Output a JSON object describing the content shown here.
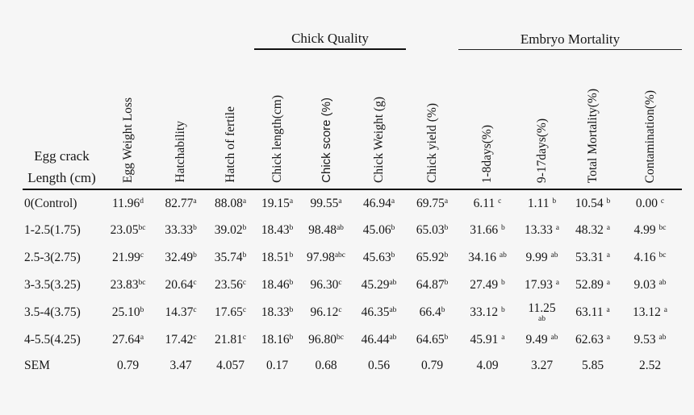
{
  "table": {
    "group_headers": [
      {
        "label": "Chick Quality"
      },
      {
        "label": "Embryo Mortality"
      }
    ],
    "row_header_line1": "Egg crack",
    "row_header_line2": "Length (cm)",
    "columns": [
      {
        "label": "Egg Weight Loss"
      },
      {
        "label": "Hatchability"
      },
      {
        "label": "Hatch of fertile"
      },
      {
        "label": "Chick length(cm)"
      },
      {
        "label": "Chick score (%)",
        "font": "sans"
      },
      {
        "label": "Chick Weight (g)"
      },
      {
        "label": "Chick yield (%)"
      },
      {
        "label": "1-8days(%)"
      },
      {
        "label": "9-17days(%)"
      },
      {
        "label": "Total Mortality(%)"
      },
      {
        "label": "Contamination(%)"
      }
    ],
    "rows": [
      {
        "label": "0(Control)",
        "cells": [
          "11.96^d",
          "82.77^a",
          "88.08^a",
          "19.15^a",
          "99.55^a",
          "46.94^a",
          "69.75^a",
          "6.11 ^c",
          "1.11 ^b",
          "10.54 ^b",
          "0.00 ^c"
        ]
      },
      {
        "label": "1-2.5(1.75)",
        "cells": [
          "23.05^bc",
          "33.33^b",
          "39.02^b",
          "18.43^b",
          "98.48^ab",
          "45.06^b",
          "65.03^b",
          "31.66 ^b",
          "13.33 ^a",
          "48.32 ^a",
          "4.99 ^bc"
        ]
      },
      {
        "label": "2.5-3(2.75)",
        "cells": [
          "21.99^c",
          "32.49^b",
          "35.74^b",
          "18.51^b",
          "97.98^abc",
          "45.63^b",
          "65.92^b",
          "34.16 ^ab",
          "9.99 ^ab",
          "53.31 ^a",
          "4.16 ^bc"
        ]
      },
      {
        "label": "3-3.5(3.25)",
        "cells": [
          "23.83^bc",
          "20.64^c",
          "23.56^c",
          "18.46^b",
          "96.30^c",
          "45.29^ab",
          "64.87^b",
          "27.49 ^b",
          "17.93 ^a",
          "52.89 ^a",
          "9.03 ^ab"
        ]
      },
      {
        "label": "3.5-4(3.75)",
        "cells": [
          "25.10^b",
          "14.37^c",
          "17.65^c",
          "18.33^b",
          "96.12^c",
          "46.35^ab",
          "66.4^b",
          "33.12 ^b",
          "11.25~ab",
          "63.11 ^a",
          "13.12 ^a"
        ]
      },
      {
        "label": "4-5.5(4.25)",
        "cells": [
          "27.64^a",
          "17.42^c",
          "21.81^c",
          "18.16^b",
          "96.80^bc",
          "46.44^ab",
          "64.65^b",
          "45.91 ^a",
          "9.49 ^ab",
          "62.63 ^a",
          "9.53 ^ab"
        ]
      },
      {
        "label": "SEM",
        "cells": [
          "0.79",
          "3.47",
          "4.057",
          "0.17",
          "0.68",
          "0.56",
          "0.79",
          "4.09",
          "3.27",
          "5.85",
          "2.52"
        ]
      }
    ]
  }
}
